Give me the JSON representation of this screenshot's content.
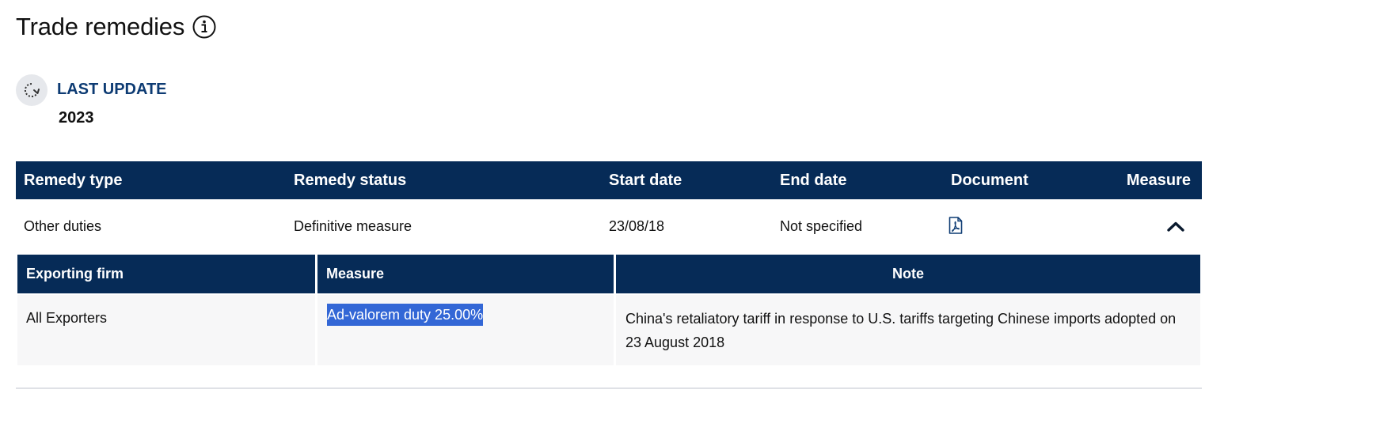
{
  "section": {
    "title": "Trade remedies"
  },
  "last_update": {
    "label": "LAST UPDATE",
    "value": "2023"
  },
  "main_table": {
    "headers": [
      "Remedy type",
      "Remedy status",
      "Start date",
      "End date",
      "Document",
      "Measure"
    ],
    "row": {
      "remedy_type": "Other duties",
      "remedy_status": "Definitive measure",
      "start_date": "23/08/18",
      "end_date": "Not specified",
      "document_icon": "pdf-document-icon",
      "measure_toggle_icon": "chevron-up-icon"
    }
  },
  "sub_table": {
    "headers": [
      "Exporting firm",
      "Measure",
      "Note"
    ],
    "row": {
      "exporting_firm": "All Exporters",
      "measure": "Ad-valorem duty 25.00%",
      "note": "China's retaliatory tariff in response to U.S. tariffs targeting Chinese imports adopted on 23 August 2018"
    }
  },
  "colors": {
    "header_bg": "#062b57",
    "accent_text": "#0d3b73",
    "selection": "#3367d6",
    "row_bg": "#f7f7f8"
  }
}
